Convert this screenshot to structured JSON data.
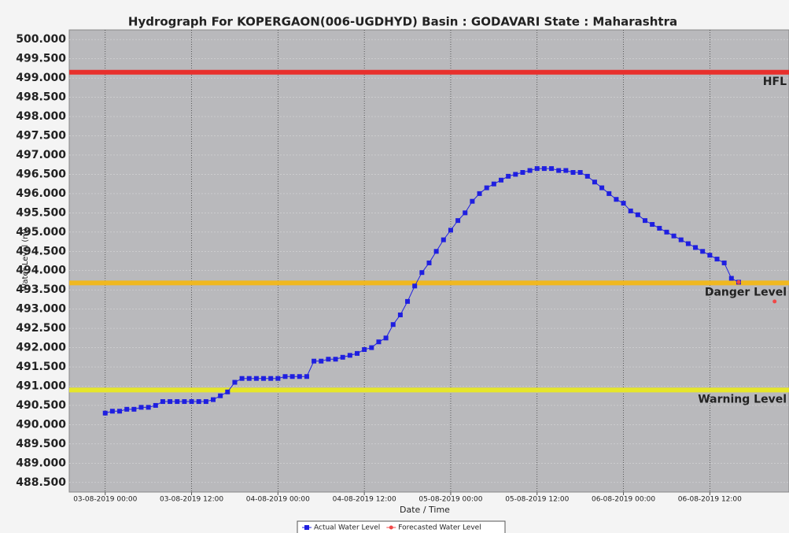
{
  "chart_data": {
    "type": "line",
    "title": "Hydrograph For KOPERGAON(006-UGDHYD) Basin : GODAVARI State : Maharashtra",
    "y_label": "Water Level (m)",
    "x_label": "Date / Time",
    "x": [
      "03-08-2019 00:00",
      "03-08-2019 01:00",
      "03-08-2019 02:00",
      "03-08-2019 03:00",
      "03-08-2019 04:00",
      "03-08-2019 05:00",
      "03-08-2019 06:00",
      "03-08-2019 07:00",
      "03-08-2019 08:00",
      "03-08-2019 09:00",
      "03-08-2019 10:00",
      "03-08-2019 11:00",
      "03-08-2019 12:00",
      "03-08-2019 13:00",
      "03-08-2019 14:00",
      "03-08-2019 15:00",
      "03-08-2019 16:00",
      "03-08-2019 17:00",
      "03-08-2019 18:00",
      "03-08-2019 19:00",
      "03-08-2019 20:00",
      "03-08-2019 21:00",
      "03-08-2019 22:00",
      "03-08-2019 23:00",
      "04-08-2019 00:00",
      "04-08-2019 01:00",
      "04-08-2019 02:00",
      "04-08-2019 03:00",
      "04-08-2019 04:00",
      "04-08-2019 05:00",
      "04-08-2019 06:00",
      "04-08-2019 07:00",
      "04-08-2019 08:00",
      "04-08-2019 09:00",
      "04-08-2019 10:00",
      "04-08-2019 11:00",
      "04-08-2019 12:00",
      "04-08-2019 13:00",
      "04-08-2019 14:00",
      "04-08-2019 15:00",
      "04-08-2019 16:00",
      "04-08-2019 17:00",
      "04-08-2019 18:00",
      "04-08-2019 19:00",
      "04-08-2019 20:00",
      "04-08-2019 21:00",
      "04-08-2019 22:00",
      "04-08-2019 23:00",
      "05-08-2019 00:00",
      "05-08-2019 01:00",
      "05-08-2019 02:00",
      "05-08-2019 03:00",
      "05-08-2019 04:00",
      "05-08-2019 05:00",
      "05-08-2019 06:00",
      "05-08-2019 07:00",
      "05-08-2019 08:00",
      "05-08-2019 09:00",
      "05-08-2019 10:00",
      "05-08-2019 11:00",
      "05-08-2019 12:00",
      "05-08-2019 13:00",
      "05-08-2019 14:00",
      "05-08-2019 15:00",
      "05-08-2019 16:00",
      "05-08-2019 17:00",
      "05-08-2019 18:00",
      "05-08-2019 19:00",
      "05-08-2019 20:00",
      "05-08-2019 21:00",
      "05-08-2019 22:00",
      "05-08-2019 23:00",
      "06-08-2019 00:00",
      "06-08-2019 01:00",
      "06-08-2019 02:00",
      "06-08-2019 03:00",
      "06-08-2019 04:00",
      "06-08-2019 05:00",
      "06-08-2019 06:00",
      "06-08-2019 07:00",
      "06-08-2019 08:00",
      "06-08-2019 09:00",
      "06-08-2019 10:00",
      "06-08-2019 11:00",
      "06-08-2019 12:00",
      "06-08-2019 13:00",
      "06-08-2019 14:00",
      "06-08-2019 15:00",
      "06-08-2019 16:00"
    ],
    "series": [
      {
        "name": "Actual Water Level",
        "color": "#1f1fe0",
        "marker": "square",
        "values": [
          490.3,
          490.35,
          490.35,
          490.4,
          490.4,
          490.45,
          490.45,
          490.5,
          490.6,
          490.6,
          490.6,
          490.6,
          490.6,
          490.6,
          490.6,
          490.65,
          490.75,
          490.85,
          491.1,
          491.2,
          491.2,
          491.2,
          491.2,
          491.2,
          491.2,
          491.25,
          491.25,
          491.25,
          491.25,
          491.65,
          491.65,
          491.7,
          491.7,
          491.75,
          491.8,
          491.85,
          491.95,
          492.0,
          492.15,
          492.25,
          492.6,
          492.85,
          493.2,
          493.6,
          493.95,
          494.2,
          494.5,
          494.8,
          495.05,
          495.3,
          495.5,
          495.8,
          496.0,
          496.15,
          496.25,
          496.35,
          496.45,
          496.5,
          496.55,
          496.6,
          496.65,
          496.65,
          496.65,
          496.6,
          496.6,
          496.55,
          496.55,
          496.45,
          496.3,
          496.15,
          496.0,
          495.85,
          495.75,
          495.55,
          495.45,
          495.3,
          495.2,
          495.1,
          495.0,
          494.9,
          494.8,
          494.7,
          494.6,
          494.5,
          494.4,
          494.3,
          494.2,
          493.8,
          493.7
        ]
      },
      {
        "name": "Forecasted Water Level",
        "color": "#f04848",
        "marker": "circle",
        "x": [
          "06-08-2019 16:00",
          "06-08-2019 21:00"
        ],
        "values": [
          493.7,
          493.2
        ]
      }
    ],
    "thresholds": [
      {
        "name": "HFL",
        "value": 499.15,
        "color": "#e8302c"
      },
      {
        "name": "Danger Level",
        "value": 493.68,
        "color": "#f0b820"
      },
      {
        "name": "Warning Level",
        "value": 490.9,
        "color": "#e6e62a"
      }
    ],
    "xlim": [
      "02-08-2019 19:00",
      "06-08-2019 23:00"
    ],
    "xticks": [
      "03-08-2019 00:00",
      "03-08-2019 12:00",
      "04-08-2019 00:00",
      "04-08-2019 12:00",
      "05-08-2019 00:00",
      "05-08-2019 12:00",
      "06-08-2019 00:00",
      "06-08-2019 12:00"
    ],
    "ylim": [
      488.25,
      500.25
    ],
    "yticks": [
      {
        "value": 500,
        "label": "500.000"
      },
      {
        "value": 499.5,
        "label": "499.500"
      },
      {
        "value": 499,
        "label": "499.000"
      },
      {
        "value": 498.5,
        "label": "498.500"
      },
      {
        "value": 498,
        "label": "498.000"
      },
      {
        "value": 497.5,
        "label": "497.500"
      },
      {
        "value": 497,
        "label": "497.000"
      },
      {
        "value": 496.5,
        "label": "496.500"
      },
      {
        "value": 496,
        "label": "496.000"
      },
      {
        "value": 495.5,
        "label": "495.500"
      },
      {
        "value": 495,
        "label": "495.000"
      },
      {
        "value": 494.5,
        "label": "494.500"
      },
      {
        "value": 494,
        "label": "494.000"
      },
      {
        "value": 493.5,
        "label": "493.500"
      },
      {
        "value": 493,
        "label": "493.000"
      },
      {
        "value": 492.5,
        "label": "492.500"
      },
      {
        "value": 492,
        "label": "492.000"
      },
      {
        "value": 491.5,
        "label": "491.500"
      },
      {
        "value": 491,
        "label": "491.000"
      },
      {
        "value": 490.5,
        "label": "490.500"
      },
      {
        "value": 490,
        "label": "490.000"
      },
      {
        "value": 489.5,
        "label": "489.500"
      },
      {
        "value": 489,
        "label": "489.000"
      },
      {
        "value": 488.5,
        "label": "488.500"
      }
    ],
    "grid": true
  }
}
